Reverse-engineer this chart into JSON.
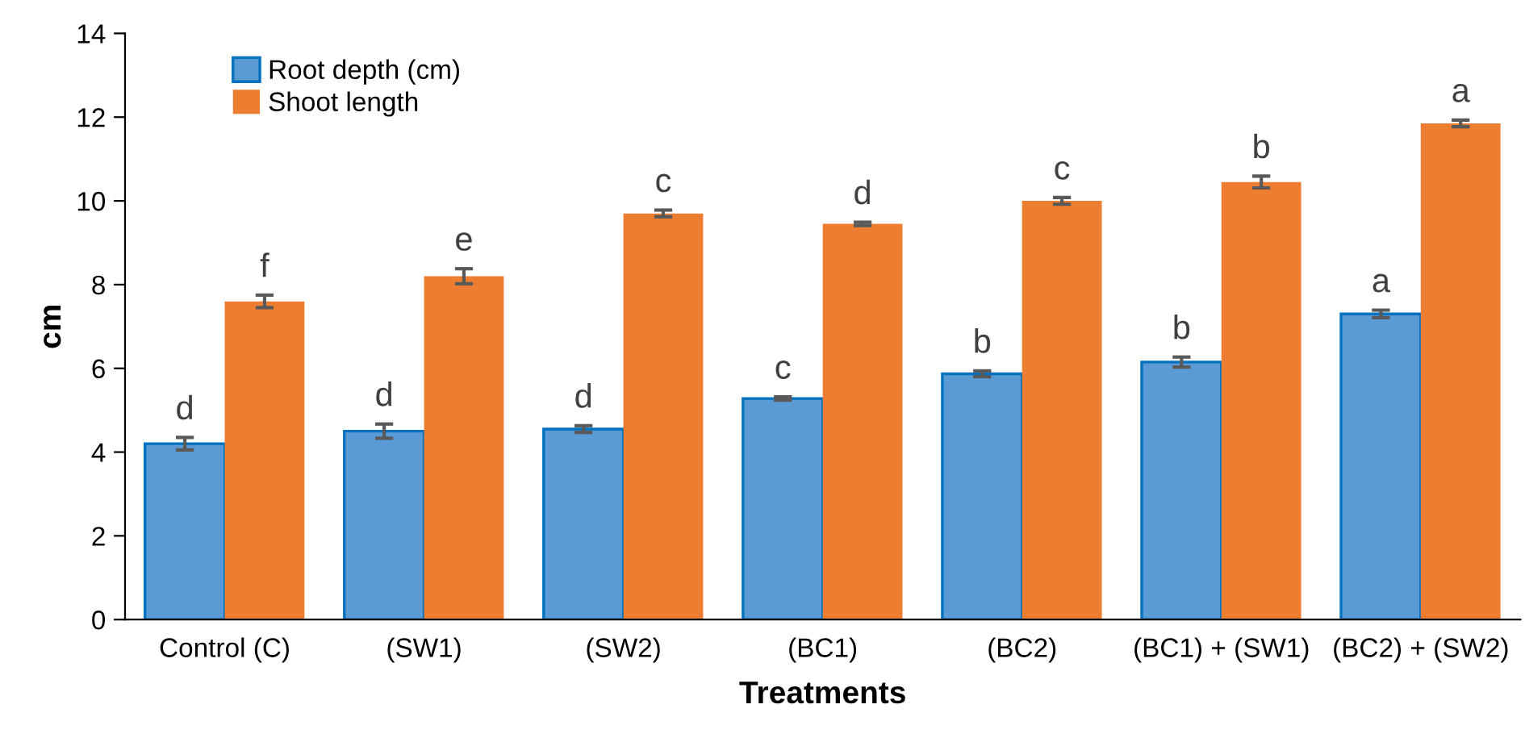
{
  "chart_data": {
    "type": "bar",
    "xlabel": "Treatments",
    "ylabel": "cm",
    "categories": [
      "Control (C)",
      "(SW1)",
      "(SW2)",
      "(BC1)",
      "(BC2)",
      "(BC1) + (SW1)",
      "(BC2) + (SW2)"
    ],
    "series": [
      {
        "name": "Root depth (cm)",
        "color": "#5b9bd5",
        "values": [
          4.2,
          4.5,
          4.55,
          5.28,
          5.87,
          6.15,
          7.3
        ],
        "errors": [
          0.15,
          0.17,
          0.08,
          0.04,
          0.07,
          0.12,
          0.09
        ],
        "value_labels": [
          "d",
          "d",
          "d",
          "c",
          "b",
          "b",
          "a"
        ]
      },
      {
        "name": "Shoot length",
        "color": "#ed7d31",
        "values": [
          7.6,
          8.2,
          9.7,
          9.45,
          10.0,
          10.45,
          11.85
        ],
        "errors": [
          0.15,
          0.18,
          0.08,
          0.04,
          0.08,
          0.14,
          0.08
        ],
        "value_labels": [
          "f",
          "e",
          "c",
          "d",
          "c",
          "b",
          "a"
        ]
      }
    ],
    "ylim": [
      0,
      14
    ],
    "yticks": [
      0,
      2,
      4,
      6,
      8,
      10,
      12,
      14
    ],
    "legend": "top left",
    "grid": false
  }
}
